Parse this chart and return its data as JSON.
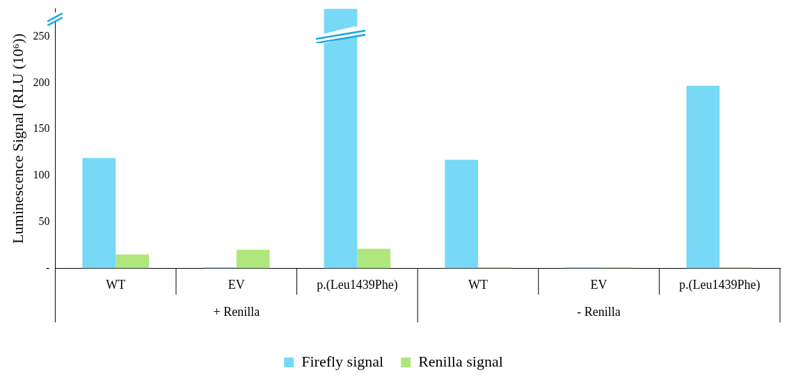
{
  "chart_data": {
    "type": "bar",
    "ylabel": "Luminescence Signal (RLU (10⁶))",
    "categories": [
      "WT",
      "EV",
      "p.(Leu1439Phe)",
      "WT",
      "EV",
      "p.(Leu1439Phe)"
    ],
    "series": [
      {
        "name": "Firefly signal",
        "color": "#77d9f6",
        "values": [
          119,
          1,
          280,
          117,
          1,
          197
        ]
      },
      {
        "name": "Renilla signal",
        "color": "#b0e67e",
        "values": [
          15,
          20,
          21,
          1,
          1,
          1
        ]
      }
    ],
    "ylim": [
      0,
      280
    ],
    "yticks": [
      {
        "value": 0,
        "label": "-"
      },
      50,
      100,
      150,
      200,
      250
    ],
    "annotations": [
      "+ Renilla",
      "- Renilla"
    ],
    "grid": false,
    "legend": "bottom"
  }
}
